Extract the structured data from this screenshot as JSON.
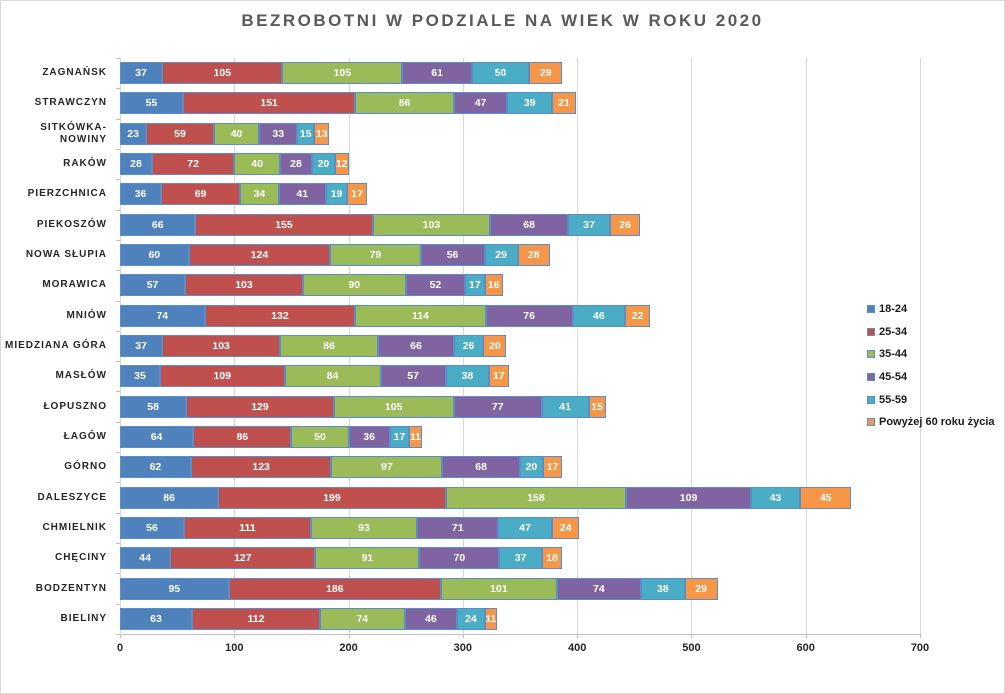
{
  "chart_data": {
    "type": "bar",
    "stacked": true,
    "orientation": "horizontal",
    "title": "BEZROBOTNI W PODZIALE NA WIEK W ROKU 2020",
    "categories": [
      "ZAGNAŃSK",
      "STRAWCZYN",
      "SITKÓWKA-NOWINY",
      "RAKÓW",
      "PIERZCHNICA",
      "PIEKOSZÓW",
      "NOWA SŁUPIA",
      "MORAWICA",
      "MNIÓW",
      "MIEDZIANA GÓRA",
      "MASŁÓW",
      "ŁOPUSZNO",
      "ŁAGÓW",
      "GÓRNO",
      "DALESZYCE",
      "CHMIELNIK",
      "CHĘCINY",
      "BODZENTYN",
      "BIELINY"
    ],
    "series": [
      {
        "name": "18-24",
        "color": "#4F81BD",
        "values": [
          37,
          55,
          23,
          28,
          36,
          66,
          60,
          57,
          74,
          37,
          35,
          58,
          64,
          62,
          86,
          56,
          44,
          95,
          63
        ]
      },
      {
        "name": "25-34",
        "color": "#C0504D",
        "values": [
          105,
          151,
          59,
          72,
          69,
          155,
          124,
          103,
          132,
          103,
          109,
          129,
          86,
          123,
          199,
          111,
          127,
          186,
          112
        ]
      },
      {
        "name": "35-44",
        "color": "#9BBB59",
        "values": [
          105,
          86,
          40,
          40,
          34,
          103,
          79,
          90,
          114,
          86,
          84,
          105,
          50,
          97,
          158,
          93,
          91,
          101,
          74
        ]
      },
      {
        "name": "45-54",
        "color": "#8064A2",
        "values": [
          61,
          47,
          33,
          28,
          41,
          68,
          56,
          52,
          76,
          66,
          57,
          77,
          36,
          68,
          109,
          71,
          70,
          74,
          46
        ]
      },
      {
        "name": "55-59",
        "color": "#4BACC6",
        "values": [
          50,
          39,
          15,
          20,
          19,
          37,
          29,
          17,
          46,
          26,
          38,
          41,
          17,
          20,
          43,
          47,
          37,
          38,
          24
        ]
      },
      {
        "name": "Powyżej 60 roku życia",
        "color": "#F79646",
        "values": [
          29,
          21,
          13,
          12,
          17,
          26,
          28,
          16,
          22,
          20,
          17,
          15,
          11,
          17,
          45,
          24,
          18,
          29,
          11
        ]
      }
    ],
    "xlim": [
      0,
      700
    ],
    "x_ticks": [
      0,
      100,
      200,
      300,
      400,
      500,
      600,
      700
    ],
    "grid": true,
    "legend_position": "right",
    "styles": {
      "title_color": "#595959",
      "category_label_color": "#262626",
      "value_label_color": "#FFFFFF",
      "grid_color": "#D9D9D9",
      "axis_color": "#BFBFBF",
      "bar_border_color": "#5B8DC8",
      "background_color": "#FFFFFF"
    }
  }
}
